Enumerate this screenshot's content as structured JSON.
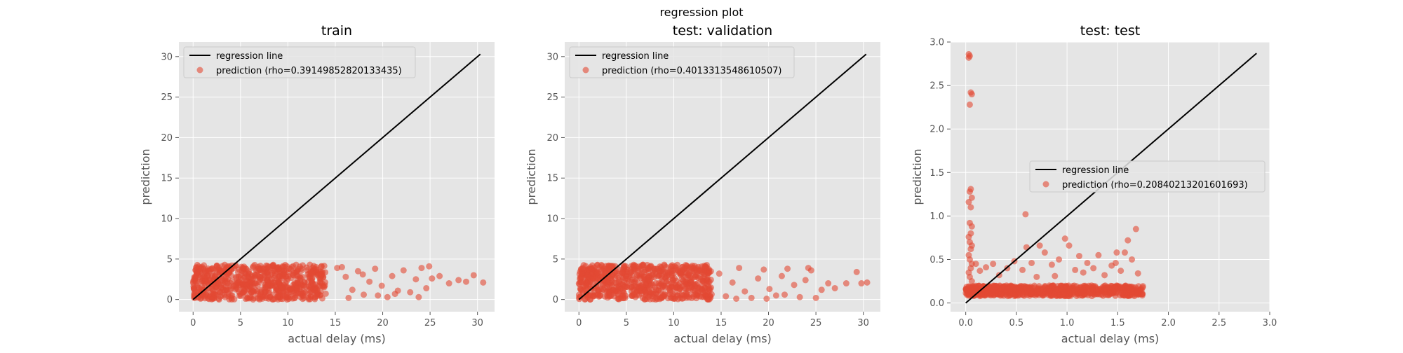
{
  "figure": {
    "suptitle": "regression plot"
  },
  "colors": {
    "panel_bg": "#e5e5e5",
    "grid": "#ffffff",
    "points": "#e24a33",
    "line": "#000000",
    "tick_text": "#555555",
    "label_text": "#555555"
  },
  "chart_data": [
    {
      "type": "scatter",
      "title": "train",
      "xlabel": "actual delay (ms)",
      "ylabel": "prediction",
      "xlim": [
        -1.5,
        31.8
      ],
      "ylim": [
        -1.5,
        31.8
      ],
      "xticks": [
        "0",
        "5",
        "10",
        "15",
        "20",
        "25",
        "30"
      ],
      "xtick_values": [
        0,
        5,
        10,
        15,
        20,
        25,
        30
      ],
      "yticks": [
        "0",
        "5",
        "10",
        "15",
        "20",
        "25",
        "30"
      ],
      "ytick_values": [
        0,
        5,
        10,
        15,
        20,
        25,
        30
      ],
      "grid": true,
      "legend_position": "upper-left",
      "series": [
        {
          "name": "regression line",
          "kind": "line",
          "x": [
            0,
            30.3
          ],
          "y": [
            0,
            30.3
          ]
        },
        {
          "name": "prediction (rho=0.39149852820133435)",
          "kind": "scatter",
          "dense_band": {
            "x_range": [
              0,
              14
            ],
            "y_range": [
              0,
              4.3
            ]
          },
          "points": [
            [
              15.2,
              3.9
            ],
            [
              16.1,
              2.8
            ],
            [
              16.8,
              1.2
            ],
            [
              17.4,
              3.5
            ],
            [
              18.0,
              0.6
            ],
            [
              18.6,
              2.2
            ],
            [
              19.2,
              3.8
            ],
            [
              19.9,
              1.7
            ],
            [
              20.5,
              0.3
            ],
            [
              21.0,
              2.9
            ],
            [
              21.6,
              1.1
            ],
            [
              22.2,
              3.6
            ],
            [
              22.9,
              0.9
            ],
            [
              23.5,
              2.5
            ],
            [
              24.1,
              3.9
            ],
            [
              24.6,
              1.4
            ],
            [
              25.2,
              2.6
            ],
            [
              26.0,
              2.9
            ],
            [
              27.0,
              2.0
            ],
            [
              28.0,
              2.4
            ],
            [
              28.8,
              2.2
            ],
            [
              29.6,
              3.0
            ],
            [
              30.6,
              2.1
            ],
            [
              16.4,
              0.2
            ],
            [
              19.5,
              0.5
            ],
            [
              21.3,
              0.7
            ],
            [
              23.8,
              0.3
            ],
            [
              24.9,
              4.1
            ],
            [
              15.7,
              4.0
            ],
            [
              17.9,
              3.1
            ]
          ]
        }
      ]
    },
    {
      "type": "scatter",
      "title": "test: validation",
      "xlabel": "actual delay (ms)",
      "ylabel": "prediction",
      "xlim": [
        -1.5,
        31.8
      ],
      "ylim": [
        -1.5,
        31.8
      ],
      "xticks": [
        "0",
        "5",
        "10",
        "15",
        "20",
        "25",
        "30"
      ],
      "xtick_values": [
        0,
        5,
        10,
        15,
        20,
        25,
        30
      ],
      "yticks": [
        "0",
        "5",
        "10",
        "15",
        "20",
        "25",
        "30"
      ],
      "ytick_values": [
        0,
        5,
        10,
        15,
        20,
        25,
        30
      ],
      "grid": true,
      "legend_position": "upper-left",
      "series": [
        {
          "name": "regression line",
          "kind": "line",
          "x": [
            0,
            30.3
          ],
          "y": [
            0,
            30.3
          ]
        },
        {
          "name": "prediction (rho=0.4013313548610507)",
          "kind": "scatter",
          "dense_band": {
            "x_range": [
              0,
              14
            ],
            "y_range": [
              0,
              4.3
            ]
          },
          "points": [
            [
              14.8,
              3.2
            ],
            [
              15.5,
              0.4
            ],
            [
              16.2,
              2.1
            ],
            [
              16.9,
              3.9
            ],
            [
              17.5,
              1.0
            ],
            [
              18.2,
              0.2
            ],
            [
              18.9,
              2.6
            ],
            [
              19.5,
              3.7
            ],
            [
              20.1,
              1.3
            ],
            [
              20.8,
              0.5
            ],
            [
              21.4,
              2.9
            ],
            [
              22.0,
              3.8
            ],
            [
              22.7,
              1.8
            ],
            [
              23.3,
              0.3
            ],
            [
              23.9,
              2.4
            ],
            [
              24.5,
              3.6
            ],
            [
              25.0,
              0.2
            ],
            [
              25.6,
              1.2
            ],
            [
              26.3,
              2.0
            ],
            [
              27.0,
              1.4
            ],
            [
              28.2,
              2.0
            ],
            [
              29.3,
              3.4
            ],
            [
              29.8,
              2.0
            ],
            [
              30.4,
              2.1
            ],
            [
              16.6,
              0.1
            ],
            [
              19.8,
              0.1
            ],
            [
              21.7,
              0.6
            ],
            [
              24.2,
              3.9
            ]
          ]
        }
      ]
    },
    {
      "type": "scatter",
      "title": "test: test",
      "xlabel": "actual delay (ms)",
      "ylabel": "prediction",
      "xlim": [
        -0.15,
        3.0
      ],
      "ylim": [
        -0.1,
        3.0
      ],
      "xticks": [
        "0.0",
        "0.5",
        "1.0",
        "1.5",
        "2.0",
        "2.5",
        "3.0"
      ],
      "xtick_values": [
        0,
        0.5,
        1.0,
        1.5,
        2.0,
        2.5,
        3.0
      ],
      "yticks": [
        "0.0",
        "0.5",
        "1.0",
        "1.5",
        "2.0",
        "2.5",
        "3.0"
      ],
      "ytick_values": [
        0,
        0.5,
        1.0,
        1.5,
        2.0,
        2.5,
        3.0
      ],
      "grid": true,
      "legend_position": "center-right",
      "series": [
        {
          "name": "regression line",
          "kind": "line",
          "x": [
            0,
            2.87
          ],
          "y": [
            0,
            2.87
          ]
        },
        {
          "name": "prediction (rho=0.20840213201601693)",
          "kind": "scatter",
          "dense_band": {
            "x_range": [
              0,
              1.75
            ],
            "y_range": [
              0.08,
              0.2
            ]
          },
          "points": [
            [
              0.03,
              2.86
            ],
            [
              0.04,
              2.84
            ],
            [
              0.03,
              2.82
            ],
            [
              0.05,
              2.42
            ],
            [
              0.06,
              2.4
            ],
            [
              0.04,
              2.28
            ],
            [
              0.05,
              1.31
            ],
            [
              0.04,
              1.28
            ],
            [
              0.06,
              1.21
            ],
            [
              0.03,
              1.16
            ],
            [
              0.05,
              1.1
            ],
            [
              0.04,
              0.92
            ],
            [
              0.06,
              0.88
            ],
            [
              0.05,
              0.8
            ],
            [
              0.03,
              0.76
            ],
            [
              0.04,
              0.7
            ],
            [
              0.06,
              0.66
            ],
            [
              0.05,
              0.62
            ],
            [
              0.03,
              0.55
            ],
            [
              0.04,
              0.5
            ],
            [
              0.06,
              0.45
            ],
            [
              0.05,
              0.4
            ],
            [
              0.03,
              0.35
            ],
            [
              0.04,
              0.3
            ],
            [
              0.06,
              0.25
            ],
            [
              0.59,
              1.02
            ],
            [
              0.1,
              0.45
            ],
            [
              0.14,
              0.37
            ],
            [
              0.2,
              0.41
            ],
            [
              0.27,
              0.45
            ],
            [
              0.33,
              0.32
            ],
            [
              0.41,
              0.4
            ],
            [
              0.48,
              0.48
            ],
            [
              0.56,
              0.38
            ],
            [
              0.6,
              0.64
            ],
            [
              0.65,
              0.46
            ],
            [
              0.7,
              0.3
            ],
            [
              0.73,
              0.66
            ],
            [
              0.78,
              0.58
            ],
            [
              0.85,
              0.44
            ],
            [
              0.92,
              0.5
            ],
            [
              0.98,
              0.74
            ],
            [
              1.02,
              0.66
            ],
            [
              1.08,
              0.38
            ],
            [
              1.16,
              0.35
            ],
            [
              1.2,
              0.46
            ],
            [
              1.26,
              0.4
            ],
            [
              1.31,
              0.55
            ],
            [
              1.37,
              0.32
            ],
            [
              1.44,
              0.43
            ],
            [
              1.49,
              0.58
            ],
            [
              1.53,
              0.37
            ],
            [
              1.57,
              0.58
            ],
            [
              1.6,
              0.72
            ],
            [
              1.64,
              0.5
            ],
            [
              1.68,
              0.85
            ],
            [
              1.7,
              0.34
            ],
            [
              1.48,
              0.46
            ],
            [
              0.88,
              0.31
            ],
            [
              1.12,
              0.54
            ]
          ]
        }
      ]
    }
  ]
}
